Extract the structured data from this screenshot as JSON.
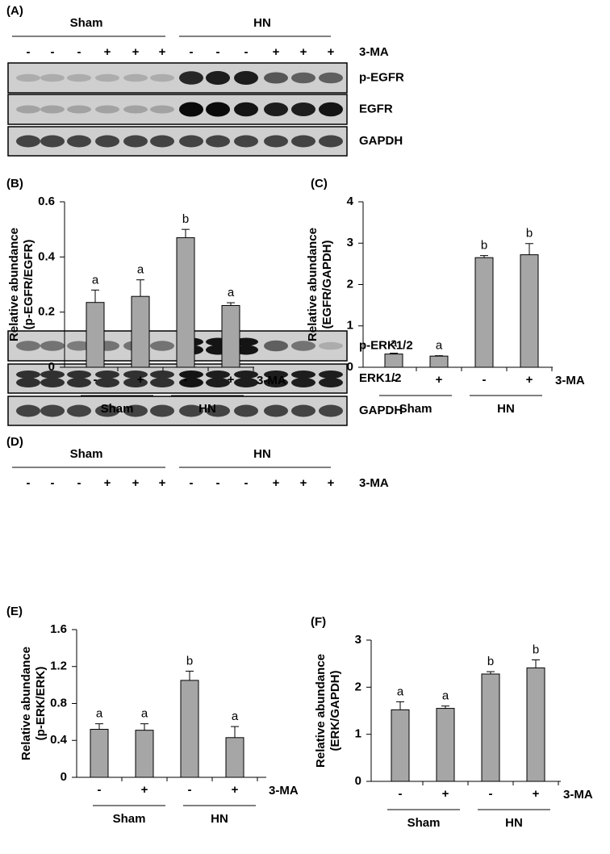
{
  "blots": [
    {
      "panel": "(A)",
      "groups": [
        "Sham",
        "HN"
      ],
      "treatment": "3-MA",
      "signs": [
        "-",
        "-",
        "-",
        "+",
        "+",
        "+",
        "-",
        "-",
        "-",
        "+",
        "+",
        "+"
      ],
      "rows": [
        "p-EGFR",
        "EGFR",
        "GAPDH"
      ]
    },
    {
      "panel": "(D)",
      "groups": [
        "Sham",
        "HN"
      ],
      "treatment": "3-MA",
      "signs": [
        "-",
        "-",
        "-",
        "+",
        "+",
        "+",
        "-",
        "-",
        "-",
        "+",
        "+",
        "+"
      ],
      "rows": [
        "p-ERK1/2",
        "ERK1/2",
        "GAPDH"
      ]
    }
  ],
  "chart_data": [
    {
      "type": "bar",
      "panel": "(B)",
      "ylabel": [
        "Relative abundance",
        "(p-EGFR/EGFR)"
      ],
      "categories": [
        "-",
        "+",
        "-",
        "+"
      ],
      "groups": [
        "Sham",
        "HN"
      ],
      "treatment": "3-MA",
      "values": [
        0.235,
        0.257,
        0.47,
        0.224
      ],
      "errors": [
        0.045,
        0.06,
        0.03,
        0.01
      ],
      "annotations": [
        "a",
        "a",
        "b",
        "a"
      ],
      "color": "#a6a6a6",
      "ylim": [
        0,
        0.6
      ],
      "yticks": [
        0,
        0.2,
        0.4,
        0.6
      ]
    },
    {
      "type": "bar",
      "panel": "(C)",
      "ylabel": [
        "Relative abundance",
        "(EGFR/GAPDH)"
      ],
      "categories": [
        "-",
        "+",
        "-",
        "+"
      ],
      "groups": [
        "Sham",
        "HN"
      ],
      "treatment": "3-MA",
      "values": [
        0.32,
        0.27,
        2.65,
        2.72
      ],
      "errors": [
        0.02,
        0.01,
        0.05,
        0.27
      ],
      "annotations": [
        "a",
        "a",
        "b",
        "b"
      ],
      "color": "#a6a6a6",
      "ylim": [
        0,
        4
      ],
      "yticks": [
        0,
        1,
        2,
        3,
        4
      ]
    },
    {
      "type": "bar",
      "panel": "(E)",
      "ylabel": [
        "Relative abundance",
        "(p-ERK/ERK)"
      ],
      "categories": [
        "-",
        "+",
        "-",
        "+"
      ],
      "groups": [
        "Sham",
        "HN"
      ],
      "treatment": "3-MA",
      "values": [
        0.52,
        0.51,
        1.05,
        0.43
      ],
      "errors": [
        0.06,
        0.07,
        0.1,
        0.12
      ],
      "annotations": [
        "a",
        "a",
        "b",
        "a"
      ],
      "color": "#a6a6a6",
      "ylim": [
        0,
        1.6
      ],
      "yticks": [
        0,
        0.4,
        0.8,
        1.2,
        1.6
      ]
    },
    {
      "type": "bar",
      "panel": "(F)",
      "ylabel": [
        "Relative abundance",
        "(ERK/GAPDH)"
      ],
      "categories": [
        "-",
        "+",
        "-",
        "+"
      ],
      "groups": [
        "Sham",
        "HN"
      ],
      "treatment": "3-MA",
      "values": [
        1.52,
        1.55,
        2.28,
        2.41
      ],
      "errors": [
        0.17,
        0.05,
        0.05,
        0.17
      ],
      "annotations": [
        "a",
        "a",
        "b",
        "b"
      ],
      "color": "#a6a6a6",
      "ylim": [
        0,
        3
      ],
      "yticks": [
        0,
        1,
        2,
        3
      ]
    }
  ]
}
